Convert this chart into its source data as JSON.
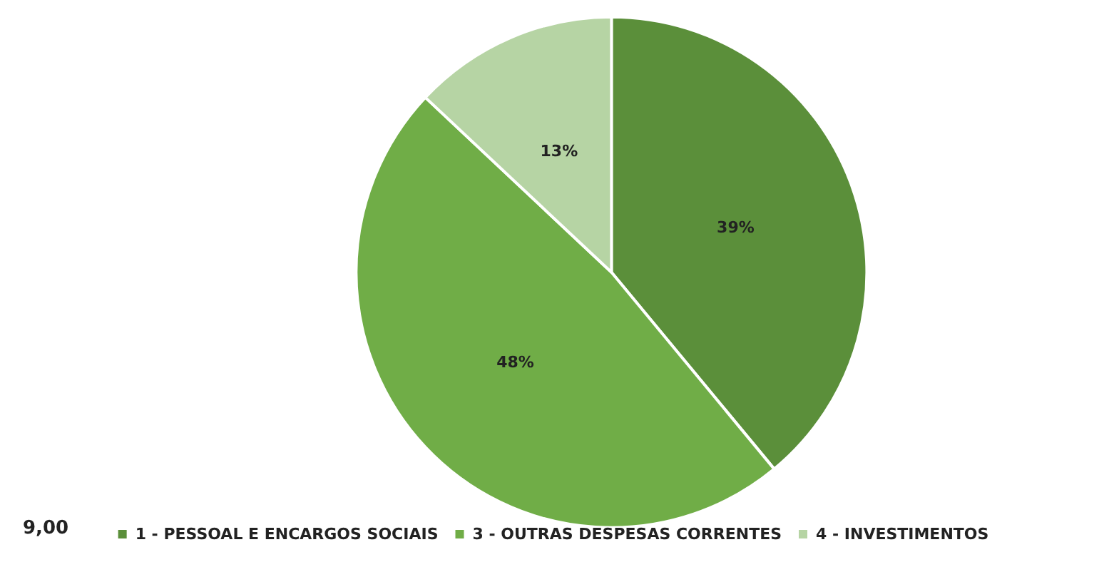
{
  "chart_data": {
    "type": "pie",
    "categories": [
      "1 - PESSOAL E ENCARGOS SOCIAIS",
      "3 - OUTRAS DESPESAS CORRENTES",
      "4 - INVESTIMENTOS"
    ],
    "values": [
      39,
      48,
      13
    ],
    "colors": [
      "#5b8f3a",
      "#70ad47",
      "#b6d4a4"
    ],
    "value_labels": [
      "39%",
      "48%",
      "13%"
    ],
    "legend": "bottom",
    "annotations": [
      "9,00"
    ]
  }
}
